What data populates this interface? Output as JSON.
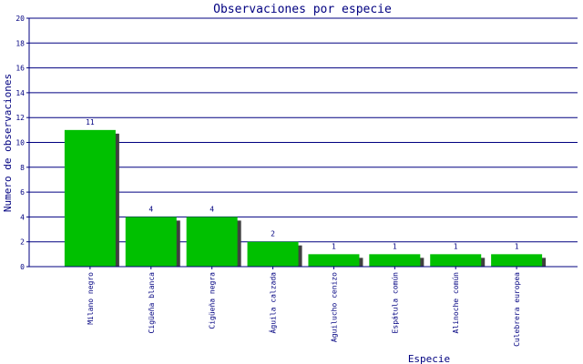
{
  "chart_data": {
    "type": "bar",
    "title": "Observaciones por especie",
    "xlabel": "Especie",
    "ylabel": "Numero de observaciones",
    "categories": [
      "Milano negro",
      "Cigüeña blanca",
      "Cigüeña negra",
      "Águila calzada",
      "Aguilucho cenizo",
      "Espátula común",
      "Alinoche común",
      "Culebrera europea"
    ],
    "values": [
      11,
      4,
      4,
      2,
      1,
      1,
      1,
      1
    ],
    "ylim": [
      0,
      20
    ],
    "yticks": [
      0,
      2,
      4,
      6,
      8,
      10,
      12,
      14,
      16,
      18,
      20
    ],
    "grid": true,
    "legend": "none",
    "colors": {
      "bar": "#00c000",
      "bar_shadow": "#404040",
      "grid": "#000080",
      "axis": "#000080",
      "text": "#000080",
      "plot_bg": "#ffffff"
    }
  }
}
